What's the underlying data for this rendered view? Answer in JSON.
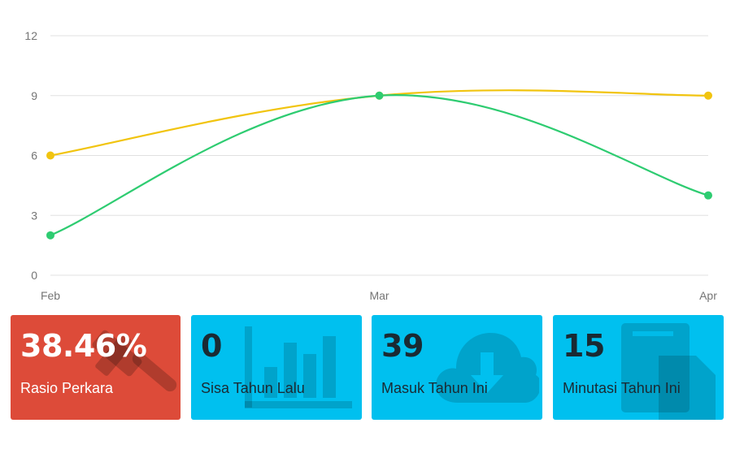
{
  "chart_data": {
    "type": "line",
    "categories": [
      "Feb",
      "Mar",
      "Apr"
    ],
    "ylim": [
      0,
      12
    ],
    "yticks": [
      0,
      3,
      6,
      9,
      12
    ],
    "grid": true,
    "series": [
      {
        "values": [
          6,
          9,
          9
        ],
        "color": "#f1c40f"
      },
      {
        "values": [
          2,
          9,
          4
        ],
        "color": "#2ecc71"
      }
    ]
  },
  "cards": [
    {
      "value": "38.46%",
      "label": "Rasio Perkara",
      "color": "#dd4b39",
      "icon": "gavel-icon"
    },
    {
      "value": "0",
      "label": "Sisa Tahun Lalu",
      "color": "#00c0ef",
      "icon": "bar-chart-icon"
    },
    {
      "value": "39",
      "label": "Masuk Tahun Ini",
      "color": "#00c0ef",
      "icon": "cloud-download-icon"
    },
    {
      "value": "15",
      "label": "Minutasi Tahun Ini",
      "color": "#00c0ef",
      "icon": "copy-icon"
    }
  ]
}
